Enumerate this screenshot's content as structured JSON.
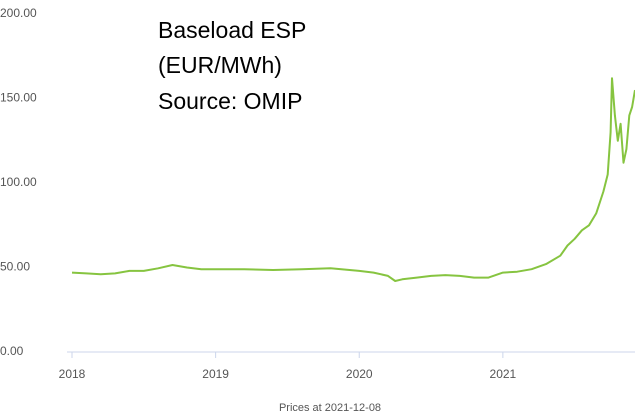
{
  "chart_data": {
    "type": "line",
    "annotation_lines": [
      "Baseload  ESP",
      "(EUR/MWh)",
      "Source: OMIP"
    ],
    "footer": "Prices at 2021-12-08",
    "x": [
      2018.0,
      2018.1,
      2018.2,
      2018.3,
      2018.4,
      2018.5,
      2018.6,
      2018.7,
      2018.8,
      2018.9,
      2019.0,
      2019.2,
      2019.4,
      2019.6,
      2019.8,
      2020.0,
      2020.1,
      2020.2,
      2020.25,
      2020.3,
      2020.4,
      2020.5,
      2020.6,
      2020.7,
      2020.8,
      2020.9,
      2021.0,
      2021.1,
      2021.2,
      2021.3,
      2021.4,
      2021.45,
      2021.5,
      2021.55,
      2021.6,
      2021.65,
      2021.7,
      2021.73,
      2021.75,
      2021.76,
      2021.78,
      2021.8,
      2021.82,
      2021.84,
      2021.86,
      2021.88,
      2021.9,
      2021.92
    ],
    "series": [
      {
        "name": "Baseload ESP",
        "color": "#86c440",
        "values": [
          47,
          46.5,
          46,
          46.5,
          48,
          48,
          49.5,
          51.5,
          50,
          49,
          49,
          49,
          48.5,
          49,
          49.5,
          48,
          47,
          45,
          42,
          43,
          44,
          45,
          45.5,
          45,
          44,
          44,
          47,
          47.5,
          49,
          52,
          57,
          63,
          67,
          72,
          75,
          82,
          95,
          105,
          130,
          162,
          140,
          125,
          135,
          112,
          120,
          140,
          145,
          155
        ]
      }
    ],
    "xlim": [
      2018,
      2021.92
    ],
    "xticks": [
      2018,
      2019,
      2020,
      2021
    ],
    "ylim": [
      0,
      200
    ],
    "yticks": [
      {
        "value": 0,
        "label": "0.00"
      },
      {
        "value": 50,
        "label": "50.00"
      },
      {
        "value": 100,
        "label": "100.00"
      },
      {
        "value": 150,
        "label": "150.00"
      },
      {
        "value": 200,
        "label": "200.00"
      }
    ],
    "grid": false
  }
}
